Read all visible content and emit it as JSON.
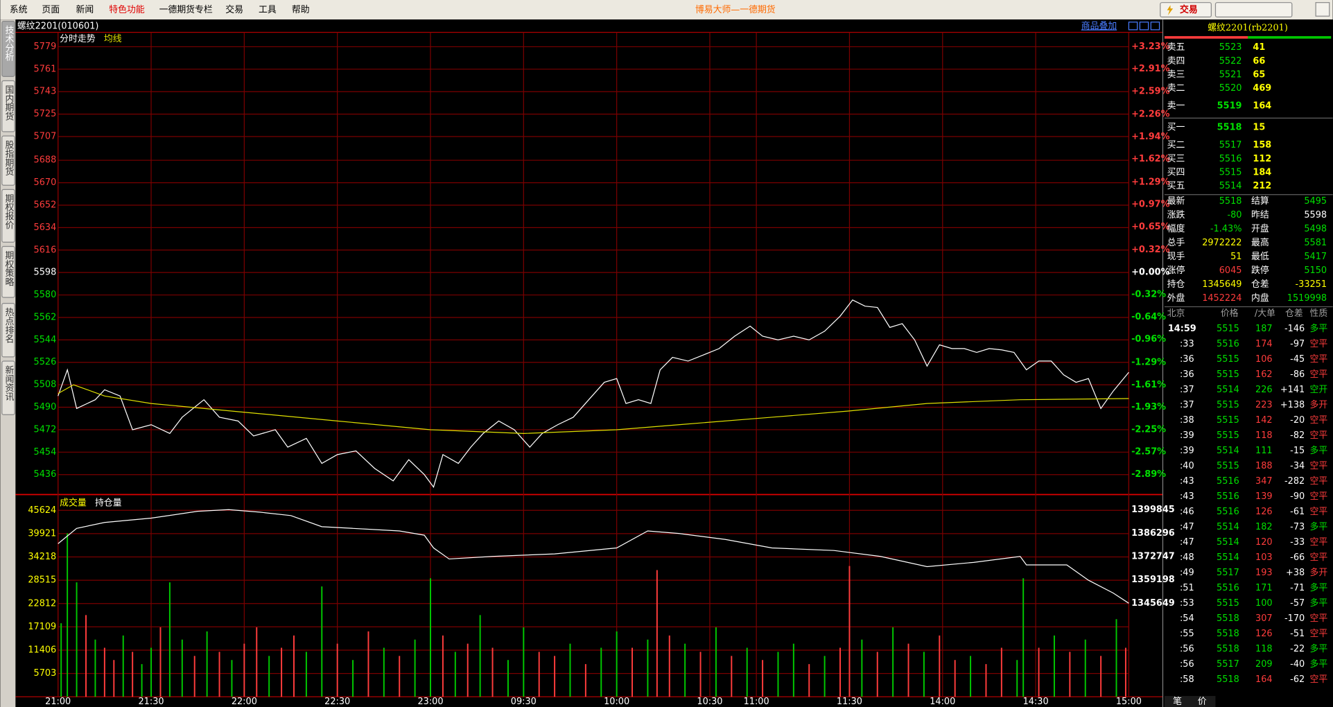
{
  "menu": [
    "系统",
    "页面",
    "新闻",
    "特色功能",
    "一德期货专栏",
    "交易",
    "工具",
    "帮助"
  ],
  "app_title": "博易大师—一德期货",
  "trade_button": "交易",
  "side_tabs": [
    "技术分析",
    "国内期货",
    "股指期货",
    "期权报价",
    "期权策略",
    "热点排名",
    "新闻资讯"
  ],
  "chart_header": "螺纹2201(010601)",
  "overlay_button": "商品叠加",
  "chart_data": [
    {
      "type": "line",
      "xlim": [
        0,
        345
      ],
      "ylim": [
        5420,
        5779
      ],
      "yticks": [
        5779,
        5761,
        5743,
        5725,
        5707,
        5688,
        5670,
        5652,
        5634,
        5616,
        5598,
        5580,
        5562,
        5544,
        5526,
        5508,
        5490,
        5472,
        5454,
        5436
      ],
      "y2lim": [
        -3.18,
        3.23
      ],
      "y2ticks": [
        {
          "value": 3.23,
          "label": "+3.23%"
        },
        {
          "value": 2.91,
          "label": "+2.91%"
        },
        {
          "value": 2.59,
          "label": "+2.59%"
        },
        {
          "value": 2.26,
          "label": "+2.26%"
        },
        {
          "value": 1.94,
          "label": "+1.94%"
        },
        {
          "value": 1.62,
          "label": "+1.62%"
        },
        {
          "value": 1.29,
          "label": "+1.29%"
        },
        {
          "value": 0.97,
          "label": "+0.97%"
        },
        {
          "value": 0.65,
          "label": "+0.65%"
        },
        {
          "value": 0.32,
          "label": "+0.32%"
        },
        {
          "value": 0,
          "label": "+0.00%"
        },
        {
          "value": -0.32,
          "label": "-0.32%"
        },
        {
          "value": -0.64,
          "label": "-0.64%"
        },
        {
          "value": -0.96,
          "label": "-0.96%"
        },
        {
          "value": -1.29,
          "label": "-1.29%"
        },
        {
          "value": -1.61,
          "label": "-1.61%"
        },
        {
          "value": -1.93,
          "label": "-1.93%"
        },
        {
          "value": -2.25,
          "label": "-2.25%"
        },
        {
          "value": -2.57,
          "label": "-2.57%"
        },
        {
          "value": -2.89,
          "label": "-2.89%"
        }
      ],
      "grid": true,
      "series": [
        {
          "name": "分时走势",
          "color": "#ffffff",
          "x": [
            0,
            3,
            6,
            12,
            15,
            20,
            24,
            30,
            36,
            40,
            47,
            52,
            58,
            63,
            70,
            74,
            80,
            85,
            90,
            96,
            102,
            108,
            113,
            118,
            121,
            124,
            129,
            133,
            137,
            142,
            147,
            152,
            156,
            161,
            166,
            171,
            176,
            180,
            183,
            187,
            191,
            194,
            198,
            203,
            208,
            213,
            218,
            223,
            227,
            232,
            237,
            242,
            247,
            252,
            256,
            260,
            264,
            268,
            272,
            276,
            280,
            284,
            288,
            292,
            296,
            300,
            304,
            308,
            312,
            316,
            320,
            324,
            328,
            332,
            336,
            340,
            345
          ],
          "values": [
            5499,
            5520,
            5489,
            5496,
            5504,
            5499,
            5472,
            5476,
            5469,
            5482,
            5496,
            5482,
            5479,
            5467,
            5472,
            5458,
            5465,
            5445,
            5452,
            5455,
            5441,
            5431,
            5448,
            5436,
            5426,
            5452,
            5445,
            5458,
            5469,
            5479,
            5472,
            5458,
            5469,
            5476,
            5482,
            5496,
            5510,
            5513,
            5493,
            5496,
            5493,
            5520,
            5530,
            5527,
            5532,
            5537,
            5547,
            5555,
            5547,
            5544,
            5547,
            5544,
            5551,
            5563,
            5576,
            5571,
            5570,
            5554,
            5557,
            5544,
            5523,
            5540,
            5537,
            5537,
            5534,
            5537,
            5536,
            5534,
            5520,
            5527,
            5527,
            5516,
            5510,
            5513,
            5489,
            5503,
            5518
          ]
        },
        {
          "name": "均线",
          "color": "#e0e000",
          "x": [
            0,
            5,
            15,
            30,
            60,
            90,
            120,
            150,
            180,
            200,
            230,
            255,
            280,
            310,
            345
          ],
          "values": [
            5501,
            5508,
            5499,
            5493,
            5486,
            5479,
            5472,
            5469,
            5472,
            5476,
            5482,
            5487,
            5493,
            5496,
            5497
          ]
        }
      ]
    },
    {
      "type": "bar",
      "xlim": [
        0,
        345
      ],
      "xticks": [
        {
          "value": 0,
          "label": "21:00"
        },
        {
          "value": 30,
          "label": "21:30"
        },
        {
          "value": 60,
          "label": "22:00"
        },
        {
          "value": 90,
          "label": "22:30"
        },
        {
          "value": 120,
          "label": "23:00"
        },
        {
          "value": 150,
          "label": "09:30"
        },
        {
          "value": 180,
          "label": "10:00"
        },
        {
          "value": 210,
          "label": "10:30"
        },
        {
          "value": 225,
          "label": "11:00"
        },
        {
          "value": 255,
          "label": "11:30"
        },
        {
          "value": 285,
          "label": "14:00"
        },
        {
          "value": 315,
          "label": "14:30"
        },
        {
          "value": 345,
          "label": "15:00"
        }
      ],
      "ylim": [
        0,
        48860
      ],
      "yticks": [
        45624,
        39921,
        34218,
        28515,
        22812,
        17109,
        11406,
        5703
      ],
      "y2lim": [
        1291316,
        1407254
      ],
      "y2ticks": [
        1399845,
        1386296,
        1372747,
        1359198,
        1345649
      ],
      "grid": true,
      "series": [
        {
          "name": "成交量",
          "color": "#ffff00",
          "type": "bar",
          "x": [
            1,
            3,
            6,
            9,
            12,
            15,
            18,
            21,
            24,
            27,
            30,
            33,
            36,
            40,
            44,
            48,
            52,
            56,
            60,
            64,
            68,
            72,
            76,
            80,
            85,
            90,
            95,
            100,
            105,
            110,
            115,
            120,
            124,
            128,
            132,
            136,
            140,
            145,
            150,
            155,
            160,
            165,
            170,
            175,
            180,
            185,
            190,
            193,
            197,
            202,
            207,
            212,
            217,
            222,
            227,
            232,
            237,
            242,
            247,
            252,
            255,
            259,
            264,
            269,
            274,
            279,
            284,
            289,
            294,
            299,
            304,
            309,
            311,
            316,
            321,
            326,
            331,
            336,
            341,
            344
          ],
          "values": [
            18000,
            40000,
            28000,
            20000,
            14000,
            12000,
            9000,
            15000,
            11000,
            8000,
            12000,
            17000,
            28000,
            14000,
            10000,
            16000,
            11000,
            9000,
            13000,
            17000,
            10000,
            12000,
            15000,
            11000,
            27000,
            13000,
            9000,
            16000,
            12000,
            10000,
            14000,
            29000,
            15000,
            11000,
            13000,
            20000,
            12000,
            9000,
            17000,
            11000,
            10000,
            13000,
            8000,
            12000,
            16000,
            12000,
            14000,
            31000,
            15000,
            13000,
            11000,
            17000,
            10000,
            12000,
            9000,
            11000,
            13000,
            8000,
            10000,
            12000,
            32000,
            14000,
            11000,
            17000,
            13000,
            11000,
            15000,
            9000,
            10000,
            8000,
            12000,
            9000,
            29000,
            12000,
            15000,
            11000,
            14000,
            10000,
            19000,
            12000
          ],
          "bar_colors": [
            "#00c800",
            "#00c800",
            "#00c800",
            "#ff3c3c",
            "#00c800",
            "#ff3c3c",
            "#ff3c3c",
            "#00c800",
            "#ff3c3c",
            "#00c800",
            "#00c800",
            "#ff3c3c",
            "#00c800",
            "#00c800",
            "#ff3c3c",
            "#00c800",
            "#ff3c3c",
            "#00c800",
            "#ff3c3c",
            "#ff3c3c",
            "#00c800",
            "#ff3c3c",
            "#ff3c3c",
            "#00c800",
            "#00c800",
            "#ff3c3c",
            "#00c800",
            "#ff3c3c",
            "#00c800",
            "#ff3c3c",
            "#00c800",
            "#00c800",
            "#ff3c3c",
            "#00c800",
            "#ff3c3c",
            "#00c800",
            "#ff3c3c",
            "#00c800",
            "#00c800",
            "#ff3c3c",
            "#ff3c3c",
            "#00c800",
            "#ff3c3c",
            "#00c800",
            "#00c800",
            "#ff3c3c",
            "#00c800",
            "#ff3c3c",
            "#ff3c3c",
            "#00c800",
            "#ff3c3c",
            "#00c800",
            "#ff3c3c",
            "#00c800",
            "#ff3c3c",
            "#00c800",
            "#00c800",
            "#ff3c3c",
            "#00c800",
            "#ff3c3c",
            "#ff3c3c",
            "#00c800",
            "#ff3c3c",
            "#00c800",
            "#ff3c3c",
            "#00c800",
            "#ff3c3c",
            "#ff3c3c",
            "#00c800",
            "#ff3c3c",
            "#ff3c3c",
            "#00c800",
            "#00c800",
            "#ff3c3c",
            "#00c800",
            "#ff3c3c",
            "#00c800",
            "#ff3c3c",
            "#00c800",
            "#ff3c3c"
          ]
        },
        {
          "name": "持仓量",
          "color": "#ffffff",
          "type": "line",
          "axis": "y2",
          "x": [
            0,
            6,
            15,
            30,
            45,
            55,
            65,
            75,
            85,
            95,
            110,
            118,
            121,
            126,
            140,
            160,
            180,
            190,
            200,
            215,
            230,
            250,
            265,
            280,
            295,
            310,
            312,
            325,
            332,
            340,
            345
          ],
          "values": [
            1380226,
            1389117,
            1392575,
            1395044,
            1398996,
            1399984,
            1398501,
            1396525,
            1390105,
            1389117,
            1387635,
            1385165,
            1377756,
            1371335,
            1372817,
            1374299,
            1377756,
            1387635,
            1386153,
            1382696,
            1377756,
            1376274,
            1372817,
            1366890,
            1369359,
            1372817,
            1367877,
            1367877,
            1358986,
            1351576,
            1345649
          ]
        }
      ]
    }
  ],
  "quote": {
    "title": "螺纹2201(rb2201)",
    "asks": [
      [
        "卖五",
        5523,
        41
      ],
      [
        "卖四",
        5522,
        66
      ],
      [
        "卖三",
        5521,
        65
      ],
      [
        "卖二",
        5520,
        469
      ],
      [
        "卖一",
        5519,
        164
      ]
    ],
    "bids": [
      [
        "买一",
        5518,
        15
      ],
      [
        "买二",
        5517,
        158
      ],
      [
        "买三",
        5516,
        112
      ],
      [
        "买四",
        5515,
        184
      ],
      [
        "买五",
        5514,
        212
      ]
    ],
    "stats": [
      [
        "最新",
        5518,
        "结算",
        5495
      ],
      [
        "涨跌",
        -80,
        "昨结",
        5598
      ],
      [
        "幅度",
        "-1.43%",
        "开盘",
        5498
      ],
      [
        "总手",
        2972222,
        "最高",
        5581
      ],
      [
        "现手",
        51,
        "最低",
        5417
      ],
      [
        "涨停",
        6045,
        "跌停",
        5150
      ],
      [
        "持仓",
        1345649,
        "仓差",
        -33251
      ],
      [
        "外盘",
        1452224,
        "内盘",
        1519998
      ]
    ],
    "tick_header": [
      "北京",
      "价格",
      "/大单",
      "仓差",
      "性质"
    ],
    "ticks": [
      [
        "14:59",
        5515,
        187,
        -146,
        "多平"
      ],
      [
        ":33",
        5516,
        174,
        -97,
        "空平"
      ],
      [
        ":36",
        5515,
        106,
        -45,
        "空平"
      ],
      [
        ":36",
        5515,
        162,
        -86,
        "空平"
      ],
      [
        ":37",
        5514,
        226,
        "+141",
        "空开"
      ],
      [
        ":37",
        5515,
        223,
        "+138",
        "多开"
      ],
      [
        ":38",
        5515,
        142,
        -20,
        "空平"
      ],
      [
        ":39",
        5515,
        118,
        -82,
        "空平"
      ],
      [
        ":39",
        5514,
        111,
        -15,
        "多平"
      ],
      [
        ":40",
        5515,
        188,
        -34,
        "空平"
      ],
      [
        ":43",
        5516,
        347,
        -282,
        "空平"
      ],
      [
        ":43",
        5516,
        139,
        -90,
        "空平"
      ],
      [
        ":46",
        5516,
        126,
        -61,
        "空平"
      ],
      [
        ":47",
        5514,
        182,
        -73,
        "多平"
      ],
      [
        ":47",
        5514,
        120,
        -33,
        "空平"
      ],
      [
        ":48",
        5514,
        103,
        -66,
        "空平"
      ],
      [
        ":49",
        5517,
        193,
        "+38",
        "多开"
      ],
      [
        ":51",
        5516,
        171,
        -71,
        "多平"
      ],
      [
        ":53",
        5515,
        100,
        -57,
        "多平"
      ],
      [
        ":54",
        5518,
        307,
        -170,
        "空平"
      ],
      [
        ":55",
        5518,
        126,
        -51,
        "空平"
      ],
      [
        ":56",
        5518,
        118,
        -22,
        "多平"
      ],
      [
        ":56",
        5517,
        209,
        -40,
        "多平"
      ],
      [
        ":58",
        5518,
        164,
        -62,
        "空平"
      ]
    ],
    "bottom_tabs": [
      "笔",
      "价"
    ]
  }
}
